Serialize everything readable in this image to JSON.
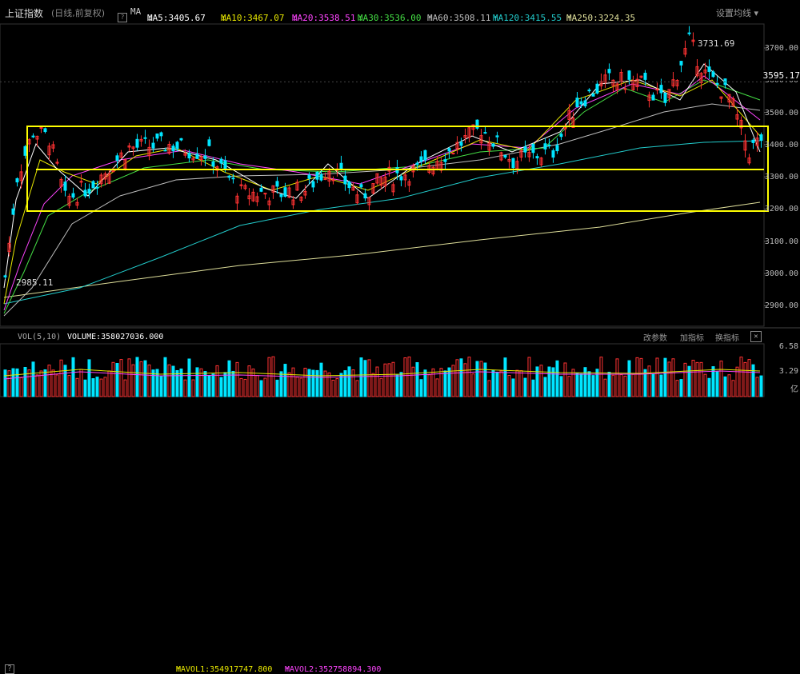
{
  "header": {
    "title": "上证指数",
    "subtitle": "(日线,前复权)",
    "help": "?",
    "ma_prefix": "MA",
    "ma": [
      {
        "label": "MA5:3405.67",
        "arrow": "↓",
        "color": "#ffffff"
      },
      {
        "label": "MA10:3467.07",
        "arrow": "↓",
        "color": "#e6e600"
      },
      {
        "label": "MA20:3538.51",
        "arrow": "↓",
        "color": "#ff44ff"
      },
      {
        "label": "MA30:3536.00",
        "arrow": "↓",
        "color": "#44dd44"
      },
      {
        "label": "MA60:3508.11",
        "arrow": "↑",
        "color": "#bbbbbb"
      },
      {
        "label": "MA120:3415.55",
        "arrow": "↑",
        "color": "#22cccc"
      },
      {
        "label": "MA250:3224.35",
        "arrow": "↑",
        "color": "#dddd99"
      }
    ],
    "settings": "设置均线 ▾"
  },
  "price_axis": {
    "labels": [
      "3700.00",
      "3600.00",
      "3500.00",
      "3400.00",
      "3300.00",
      "3200.00",
      "3100.00",
      "3000.00",
      "2900.00"
    ],
    "values": [
      3700,
      3600,
      3500,
      3400,
      3300,
      3200,
      3100,
      3000,
      2900
    ],
    "current": "3595.17",
    "high_label": "3731.69",
    "low_label": "2985.11"
  },
  "volume": {
    "label": "VOL(5,10)",
    "volume": "VOLUME:358027036.000",
    "mavol1": "MAVOL1:354917747.800",
    "mavol2": "MAVOL2:352758894.300",
    "mavol1_arrow": "↑",
    "mavol2_arrow": "↑",
    "buttons": [
      "改参数",
      "加指标",
      "换指标"
    ],
    "close": "✕",
    "axis": [
      "6.58",
      "3.29"
    ],
    "axis_unit": "亿"
  },
  "colors": {
    "up": "#ff3232",
    "down": "#00e5ff",
    "annotation": "#ffff00"
  }
}
